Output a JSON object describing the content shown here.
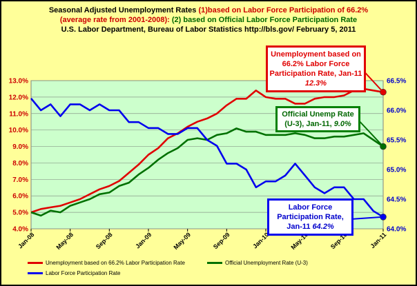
{
  "titles": {
    "line1_black": "Seasonal Adjusted Unemployment Rates ",
    "line1_red": "(1)based on Labor Force Participation of 66.2%",
    "line2_red": "(average rate from 2001-2008): ",
    "line2_green": "(2) based on Official Labor Force Participation Rate",
    "line3": "U.S. Labor Department, Bureau of Labor Statistics http://bls.gov/ February 5, 2011"
  },
  "callouts": {
    "red": {
      "text": "Unemployment based on 66.2% Labor Force Participation Rate, Jan-11 ",
      "value": "12.3%"
    },
    "green": {
      "text": "Official Unemp Rate (U-3), Jan-11, ",
      "value": "9.0%"
    },
    "blue": {
      "text": "Labor Force Participation Rate, Jan-11 ",
      "value": "64.2%"
    }
  },
  "legend": {
    "red": "Unemployment based on 66.2% Labor Participation Rate",
    "green": "Official Unemployment Rate (U-3)",
    "blue": "Labor Force Participation Rate"
  },
  "colors": {
    "red": "#e00000",
    "green": "#007000",
    "blue": "#0000ee",
    "plot_bg": "#ccffcc",
    "frame_bg": "#ffff99"
  },
  "chart_data": {
    "type": "line",
    "x": [
      "Jan-08",
      "Feb-08",
      "Mar-08",
      "Apr-08",
      "May-08",
      "Jun-08",
      "Jul-08",
      "Aug-08",
      "Sep-08",
      "Oct-08",
      "Nov-08",
      "Dec-08",
      "Jan-09",
      "Feb-09",
      "Mar-09",
      "Apr-09",
      "May-09",
      "Jun-09",
      "Jul-09",
      "Aug-09",
      "Sep-09",
      "Oct-09",
      "Nov-09",
      "Dec-09",
      "Jan-10",
      "Feb-10",
      "Mar-10",
      "Apr-10",
      "May-10",
      "Jun-10",
      "Jul-10",
      "Aug-10",
      "Sep-10",
      "Oct-10",
      "Nov-10",
      "Dec-10",
      "Jan-11"
    ],
    "x_tick_labels": [
      "Jan-08",
      "May-08",
      "Sep-08",
      "Jan-09",
      "May-09",
      "Sep-09",
      "Jan-10",
      "May-10",
      "Sep-10",
      "Jan-11"
    ],
    "y_left": {
      "ylim": [
        4.0,
        13.0
      ],
      "tick_labels": [
        "4.0%",
        "5.0%",
        "6.0%",
        "7.0%",
        "8.0%",
        "9.0%",
        "10.0%",
        "11.0%",
        "12.0%",
        "13.0%"
      ]
    },
    "y_right": {
      "ylim": [
        64.0,
        66.5
      ],
      "tick_labels": [
        "64.0%",
        "64.5%",
        "65.0%",
        "65.5%",
        "66.0%",
        "66.5%"
      ]
    },
    "grid": true,
    "legend_position": "bottom",
    "series": [
      {
        "name": "Unemployment based on 66.2% Labor Participation Rate",
        "axis": "left",
        "values": [
          5.0,
          5.2,
          5.3,
          5.4,
          5.6,
          5.8,
          6.1,
          6.4,
          6.6,
          6.9,
          7.4,
          7.9,
          8.5,
          8.9,
          9.5,
          9.8,
          10.2,
          10.5,
          10.7,
          11.0,
          11.5,
          11.9,
          11.9,
          12.4,
          12.0,
          11.9,
          11.9,
          11.6,
          11.6,
          11.9,
          12.0,
          12.0,
          12.1,
          12.4,
          12.5,
          12.4,
          12.3
        ]
      },
      {
        "name": "Official Unemployment Rate (U-3)",
        "axis": "left",
        "values": [
          5.0,
          4.8,
          5.1,
          5.0,
          5.4,
          5.6,
          5.8,
          6.1,
          6.2,
          6.6,
          6.8,
          7.3,
          7.7,
          8.2,
          8.6,
          8.9,
          9.4,
          9.5,
          9.4,
          9.7,
          9.8,
          10.1,
          9.9,
          9.9,
          9.7,
          9.7,
          9.7,
          9.8,
          9.7,
          9.5,
          9.5,
          9.6,
          9.6,
          9.7,
          9.8,
          9.4,
          9.0
        ]
      },
      {
        "name": "Labor Force Participation Rate",
        "axis": "right",
        "values": [
          66.2,
          66.0,
          66.1,
          65.9,
          66.1,
          66.1,
          66.0,
          66.1,
          66.0,
          66.0,
          65.8,
          65.8,
          65.7,
          65.7,
          65.6,
          65.6,
          65.7,
          65.7,
          65.5,
          65.4,
          65.1,
          65.1,
          65.0,
          64.7,
          64.8,
          64.8,
          64.9,
          65.1,
          64.9,
          64.7,
          64.6,
          64.7,
          64.7,
          64.5,
          64.5,
          64.3,
          64.2
        ]
      }
    ]
  }
}
